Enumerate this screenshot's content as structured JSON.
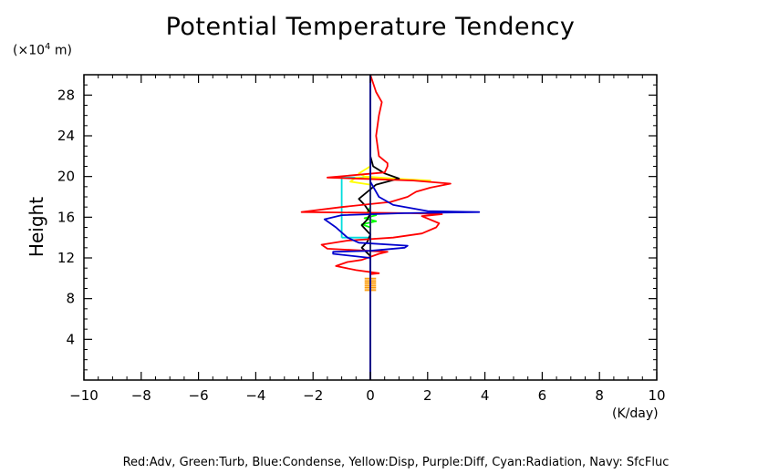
{
  "chart_data": {
    "type": "line",
    "title": "Potential Temperature Tendency",
    "ylabel": "Height",
    "yunit_prefix": "(×10",
    "yunit_exp": "4",
    "yunit_suffix": " m)",
    "xunit": "(K/day)",
    "legend_text": "Red:Adv, Green:Turb, Blue:Condense, Yellow:Disp, Purple:Diff, Cyan:Radiation, Navy: SfcFluc",
    "xlim": [
      -10,
      10
    ],
    "ylim": [
      0,
      30
    ],
    "x_ticks": [
      -10,
      -8,
      -6,
      -4,
      -2,
      0,
      2,
      4,
      6,
      8,
      10
    ],
    "x_tick_labels": [
      "−10",
      "−8",
      "−6",
      "−4",
      "−2",
      "0",
      "2",
      "4",
      "6",
      "8",
      "10"
    ],
    "y_ticks": [
      4,
      8,
      12,
      16,
      20,
      24,
      28
    ],
    "y_tick_labels": [
      "4",
      "8",
      "12",
      "16",
      "20",
      "24",
      "28"
    ],
    "series": [
      {
        "color": "#000000",
        "points": [
          [
            0,
            0
          ],
          [
            0,
            10
          ],
          [
            0,
            12.2
          ],
          [
            -0.3,
            13
          ],
          [
            -0.1,
            13.6
          ],
          [
            0,
            14.3
          ],
          [
            -0.3,
            15.2
          ],
          [
            -0.1,
            15.8
          ],
          [
            0,
            16.4
          ],
          [
            -0.2,
            17.2
          ],
          [
            -0.4,
            17.8
          ],
          [
            0.2,
            19.2
          ],
          [
            1,
            19.8
          ],
          [
            0.5,
            20.3
          ],
          [
            0.1,
            21
          ],
          [
            0,
            22
          ],
          [
            0,
            30
          ]
        ]
      },
      {
        "color": "#ff0000",
        "points": [
          [
            0,
            0
          ],
          [
            0,
            10.4
          ],
          [
            0.3,
            10.5
          ],
          [
            -0.5,
            10.8
          ],
          [
            -1.2,
            11.2
          ],
          [
            -0.8,
            11.6
          ],
          [
            -0.3,
            11.8
          ],
          [
            0.3,
            12.4
          ],
          [
            0.6,
            12.6
          ],
          [
            -1.5,
            12.9
          ],
          [
            -1.7,
            13.3
          ],
          [
            -0.8,
            13.7
          ],
          [
            0.8,
            14
          ],
          [
            1.8,
            14.4
          ],
          [
            2.3,
            15
          ],
          [
            2.4,
            15.4
          ],
          [
            1.8,
            16.1
          ],
          [
            2.5,
            16.3
          ],
          [
            1.4,
            16.4
          ],
          [
            -2.4,
            16.5
          ],
          [
            -1,
            17
          ],
          [
            0.7,
            17.5
          ],
          [
            1.3,
            18
          ],
          [
            1.6,
            18.5
          ],
          [
            2.1,
            18.9
          ],
          [
            2.8,
            19.3
          ],
          [
            1.5,
            19.6
          ],
          [
            -1.5,
            19.9
          ],
          [
            0.5,
            20.4
          ],
          [
            0.6,
            21
          ],
          [
            0.6,
            21.3
          ],
          [
            0.3,
            22
          ],
          [
            0.2,
            24
          ],
          [
            0.3,
            26
          ],
          [
            0.4,
            27.3
          ],
          [
            0.2,
            28.3
          ],
          [
            0,
            30
          ]
        ]
      },
      {
        "color": "#0000cd",
        "points": [
          [
            0,
            0
          ],
          [
            0,
            12
          ],
          [
            -1.3,
            12.4
          ],
          [
            -1.3,
            12.6
          ],
          [
            0,
            12.7
          ],
          [
            1.2,
            13
          ],
          [
            1.3,
            13.2
          ],
          [
            -0.4,
            13.5
          ],
          [
            -0.8,
            14
          ],
          [
            -1.2,
            15
          ],
          [
            -1.6,
            15.8
          ],
          [
            -1,
            16.2
          ],
          [
            1.2,
            16.4
          ],
          [
            3.8,
            16.5
          ],
          [
            2,
            16.6
          ],
          [
            0.8,
            17.2
          ],
          [
            0.3,
            18
          ],
          [
            0.1,
            19
          ],
          [
            0,
            19.5
          ],
          [
            0,
            30
          ]
        ]
      },
      {
        "color": "#ffff00",
        "points": [
          [
            0,
            0
          ],
          [
            0,
            19.2
          ],
          [
            -0.7,
            19.5
          ],
          [
            -0.5,
            19.9
          ],
          [
            0.6,
            19.7
          ],
          [
            2.1,
            19.6
          ],
          [
            0.8,
            19.8
          ],
          [
            -0.2,
            20
          ],
          [
            -0.4,
            20.3
          ],
          [
            0,
            21
          ],
          [
            0,
            30
          ]
        ]
      },
      {
        "color": "#00ff00",
        "points": [
          [
            0,
            0
          ],
          [
            0,
            15
          ],
          [
            -0.3,
            15.3
          ],
          [
            0.2,
            15.6
          ],
          [
            -0.2,
            15.9
          ],
          [
            0.2,
            16.2
          ],
          [
            -0.1,
            16.5
          ],
          [
            0,
            17
          ],
          [
            0,
            30
          ]
        ]
      },
      {
        "color": "#00dddd",
        "points": [
          [
            -1,
            14
          ],
          [
            -1,
            19.9
          ],
          [
            0,
            19.9
          ],
          [
            0,
            14
          ],
          [
            -1,
            14
          ]
        ]
      }
    ],
    "hatch_blob": {
      "x_range": [
        -0.2,
        0.2
      ],
      "y_range": [
        8.8,
        10
      ]
    }
  }
}
